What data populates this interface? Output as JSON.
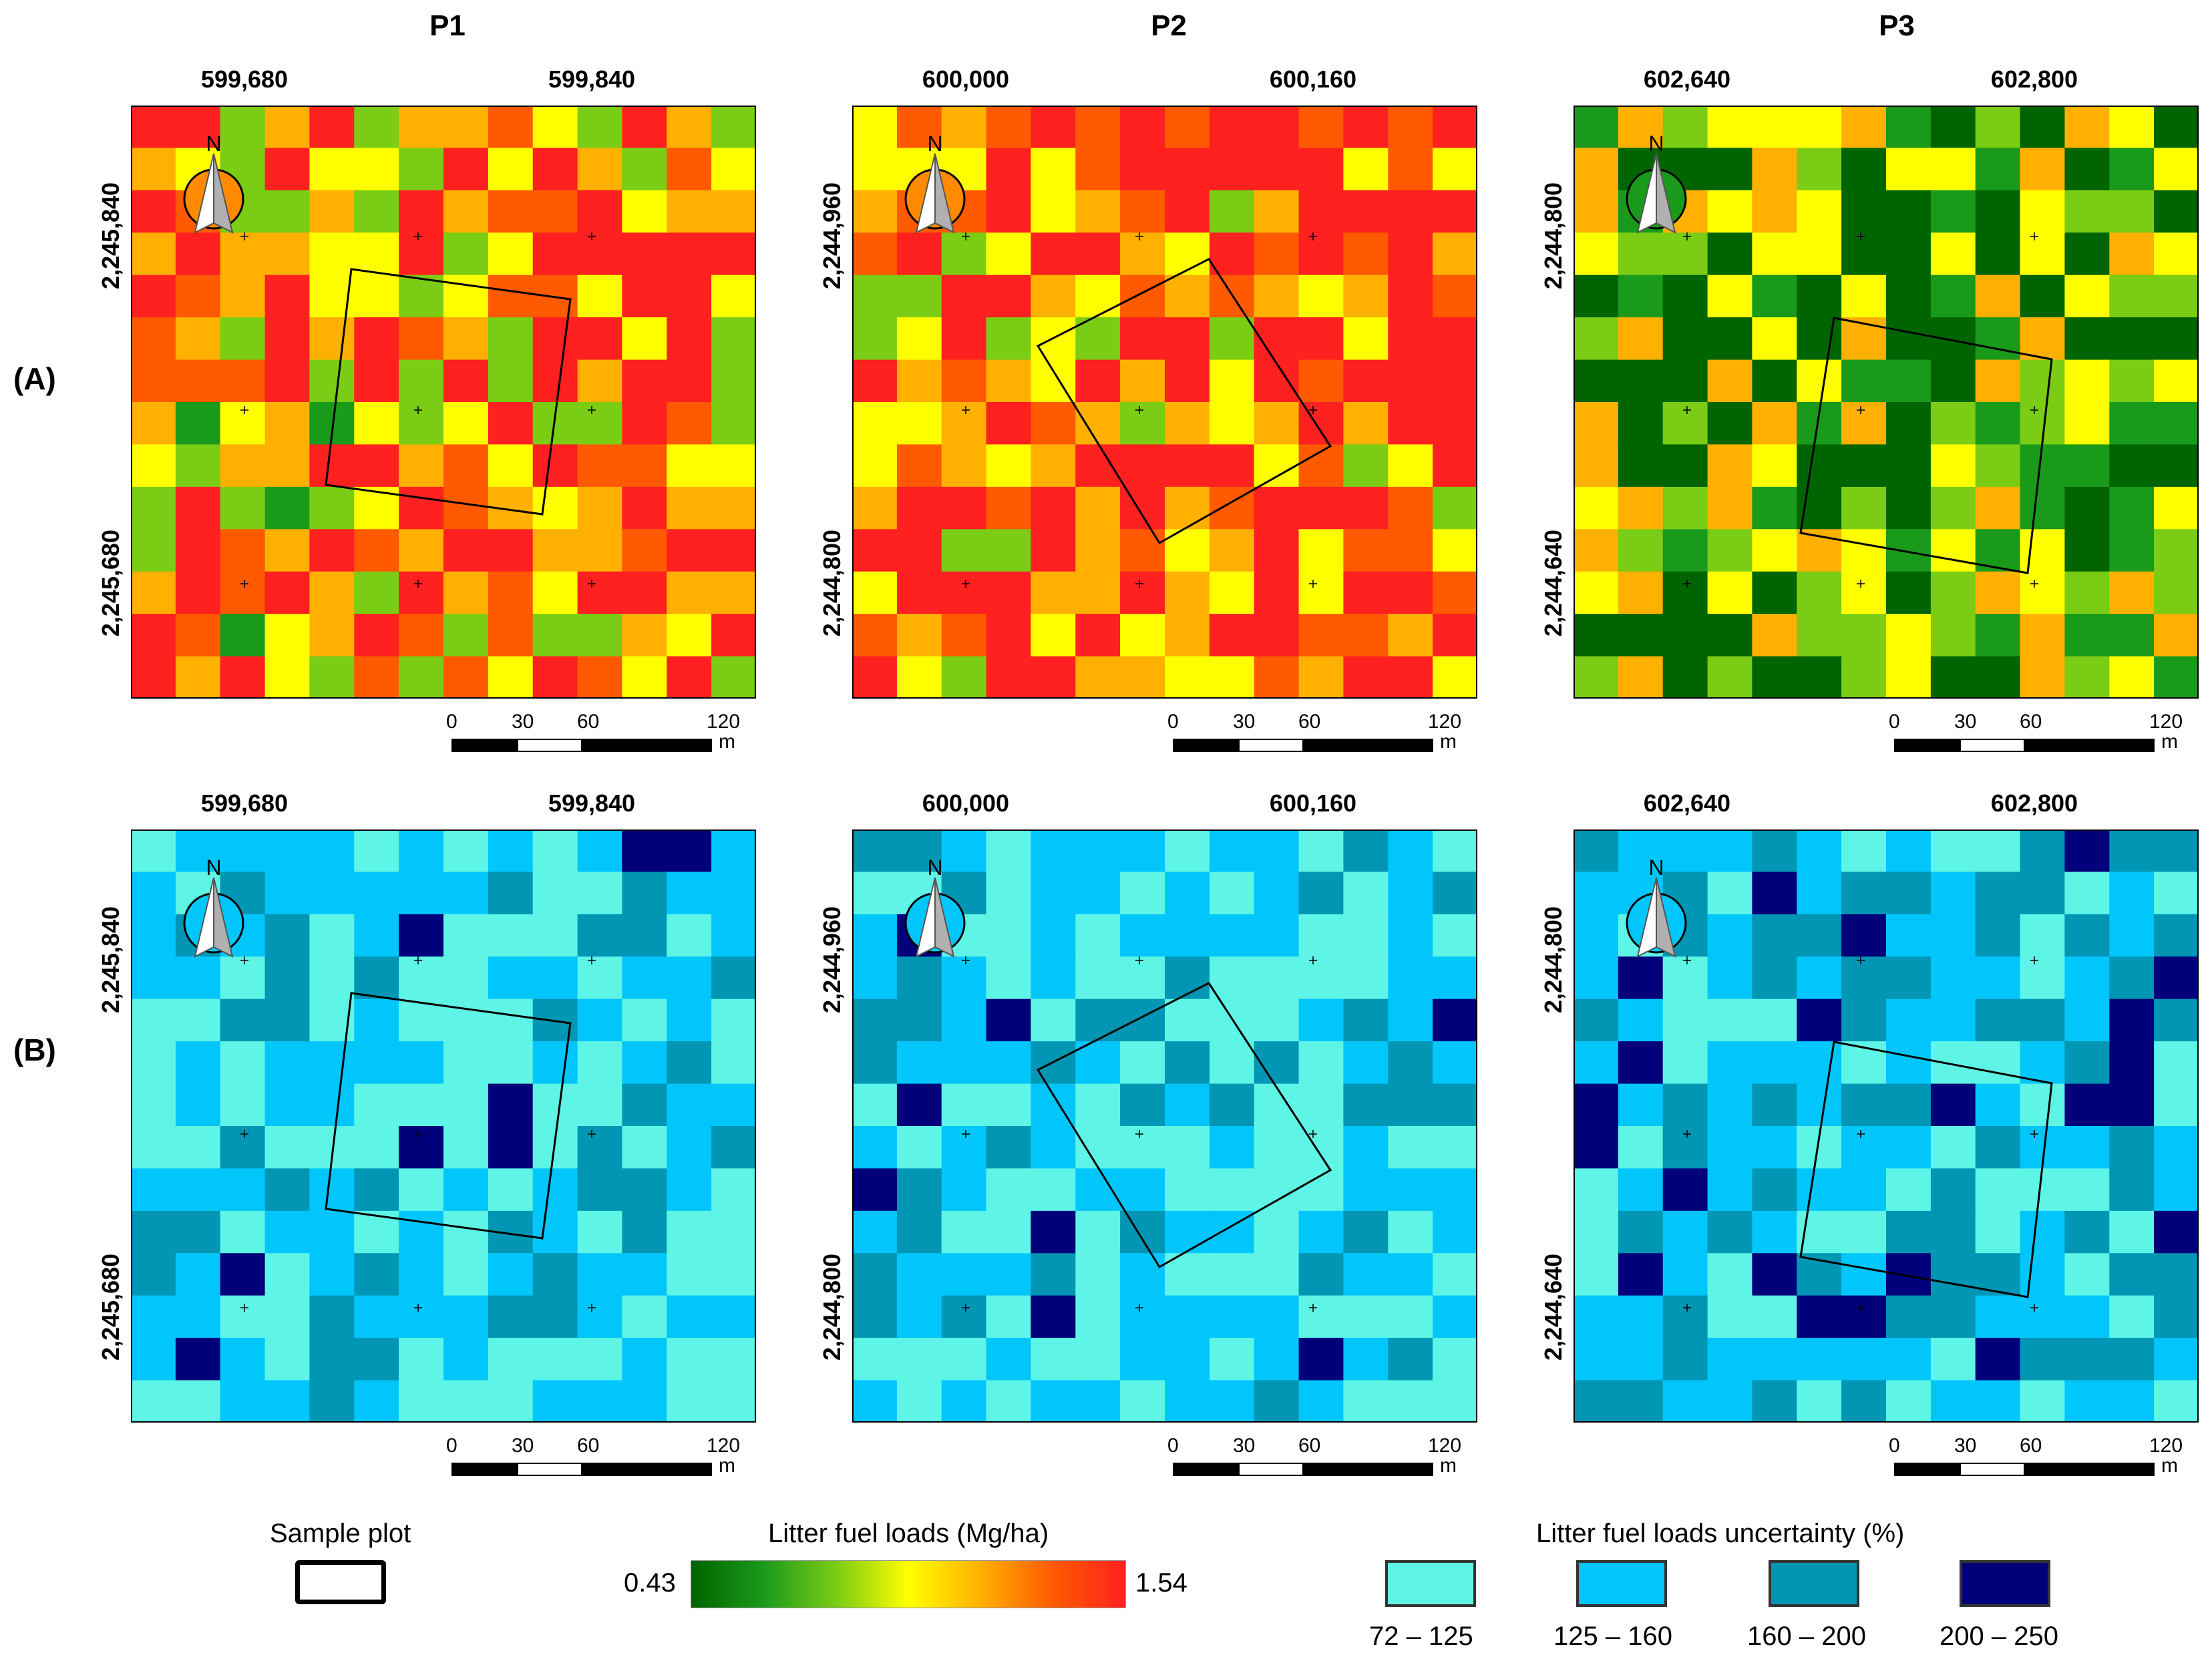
{
  "columns": [
    {
      "title": "P1",
      "x_ticks": [
        "599,680",
        "599,840"
      ],
      "y_ticks": [
        "2,245,840",
        "2,245,680"
      ]
    },
    {
      "title": "P2",
      "x_ticks": [
        "600,000",
        "600,160"
      ],
      "y_ticks": [
        "2,244,960",
        "2,244,800"
      ]
    },
    {
      "title": "P3",
      "x_ticks": [
        "602,640",
        "602,800"
      ],
      "y_ticks": [
        "2,244,800",
        "2,244,640"
      ]
    }
  ],
  "rows": [
    {
      "label": "(A)",
      "type": "fuel"
    },
    {
      "label": "(B)",
      "type": "uncertainty"
    }
  ],
  "north_label": "N",
  "scale_bar": {
    "ticks": [
      "0",
      "30",
      "60",
      "120"
    ],
    "unit": "m"
  },
  "legend": {
    "sample_plot": "Sample plot",
    "fuel": {
      "title": "Litter fuel loads (Mg/ha)",
      "min": "0.43",
      "max": "1.54",
      "colors": [
        "#006400",
        "#1a9a1a",
        "#7acc14",
        "#ffff00",
        "#ffb000",
        "#ff5a00",
        "#ff2020"
      ]
    },
    "uncertainty": {
      "title": "Litter fuel loads uncertainty (%)",
      "classes": [
        {
          "label": "72 – 125",
          "color": "#5ff5e6"
        },
        {
          "label": "125 – 160",
          "color": "#00c6fc"
        },
        {
          "label": "160 – 200",
          "color": "#0096b4"
        },
        {
          "label": "200 – 250",
          "color": "#00007a"
        }
      ]
    }
  },
  "icons": {
    "north_arrow": "north-arrow-icon"
  }
}
